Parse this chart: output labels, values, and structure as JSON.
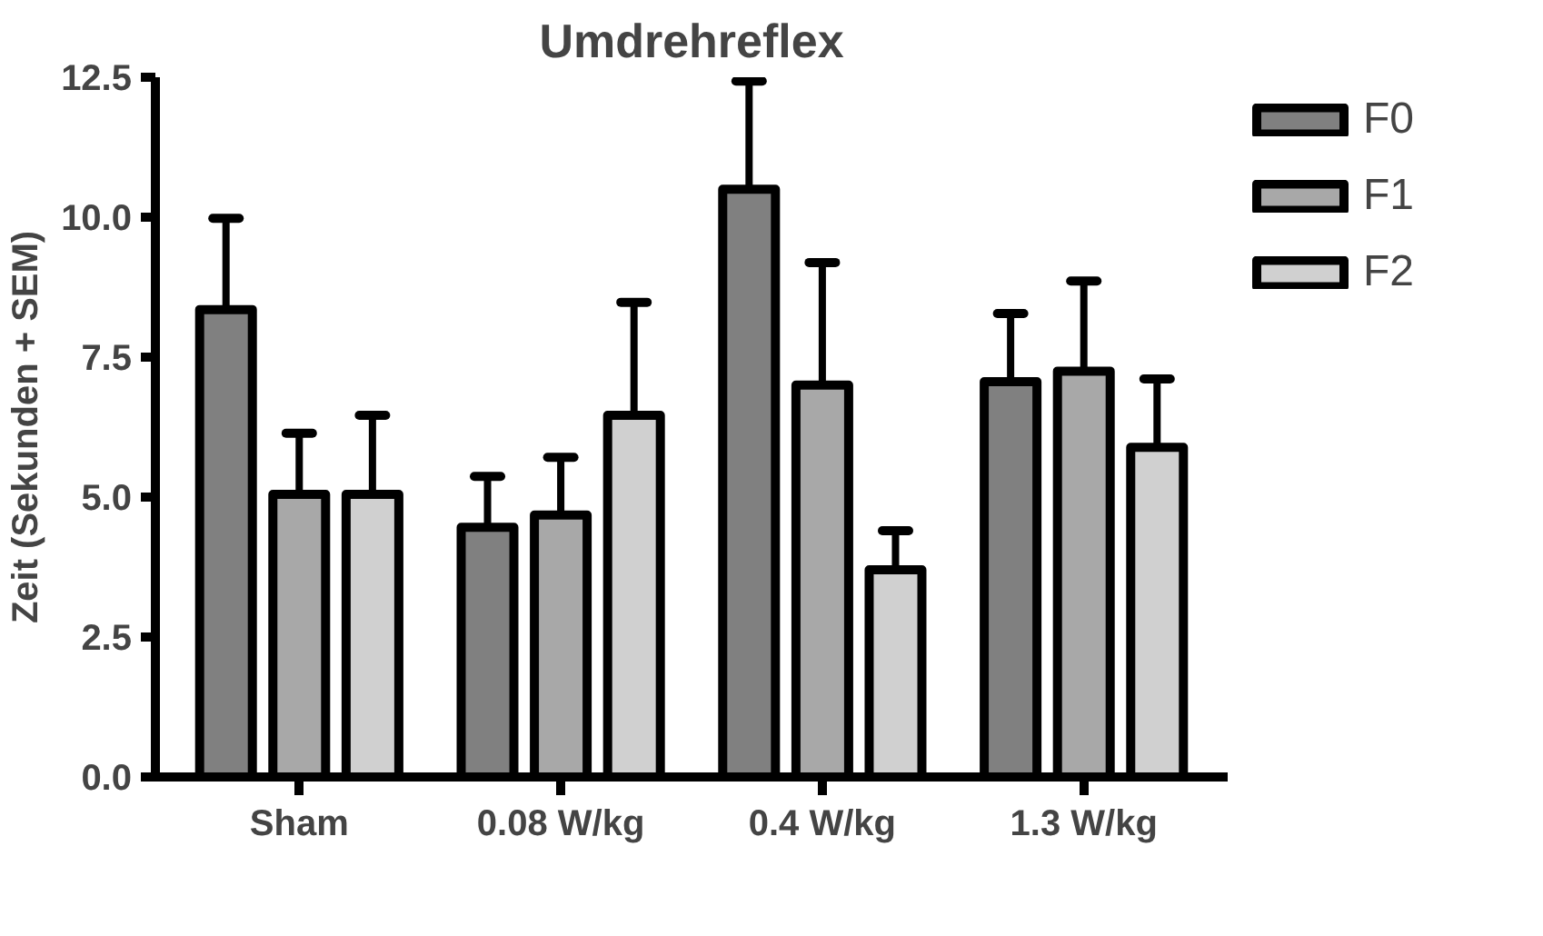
{
  "chart_data": {
    "type": "bar",
    "title": "Umdrehreflex",
    "ylabel": "Zeit (Sekunden + SEM)",
    "categories": [
      "Sham",
      "0.08 W/kg",
      "0.4 W/kg",
      "1.3 W/kg"
    ],
    "series": [
      {
        "name": "F0",
        "color": "#808080",
        "values": [
          8.35,
          4.46,
          10.5,
          7.06
        ],
        "errors": [
          [
            8.35,
            9.98
          ],
          [
            4.46,
            5.37
          ],
          [
            10.5,
            12.43
          ],
          [
            7.06,
            8.28
          ]
        ]
      },
      {
        "name": "F1",
        "color": "#a8a8a8",
        "values": [
          5.05,
          4.68,
          7.0,
          7.25
        ],
        "errors": [
          [
            5.05,
            6.14
          ],
          [
            4.68,
            5.71
          ],
          [
            7.0,
            9.19
          ],
          [
            7.25,
            8.86
          ]
        ]
      },
      {
        "name": "F2",
        "color": "#d0d0d0",
        "values": [
          5.05,
          6.46,
          3.7,
          5.89
        ],
        "errors": [
          [
            5.05,
            6.46
          ],
          [
            6.46,
            8.48
          ],
          [
            3.7,
            4.4
          ],
          [
            5.89,
            7.11
          ]
        ]
      }
    ],
    "ylim": [
      0,
      12.5
    ],
    "yticks": [
      {
        "value": 0,
        "label": "0.0"
      },
      {
        "value": 2.5,
        "label": "2.5"
      },
      {
        "value": 5,
        "label": "5.0"
      },
      {
        "value": 7.5,
        "label": "7.5"
      },
      {
        "value": 10,
        "label": "10.0"
      },
      {
        "value": 12.5,
        "label": "12.5"
      }
    ],
    "grid": false,
    "legend": "top right"
  }
}
